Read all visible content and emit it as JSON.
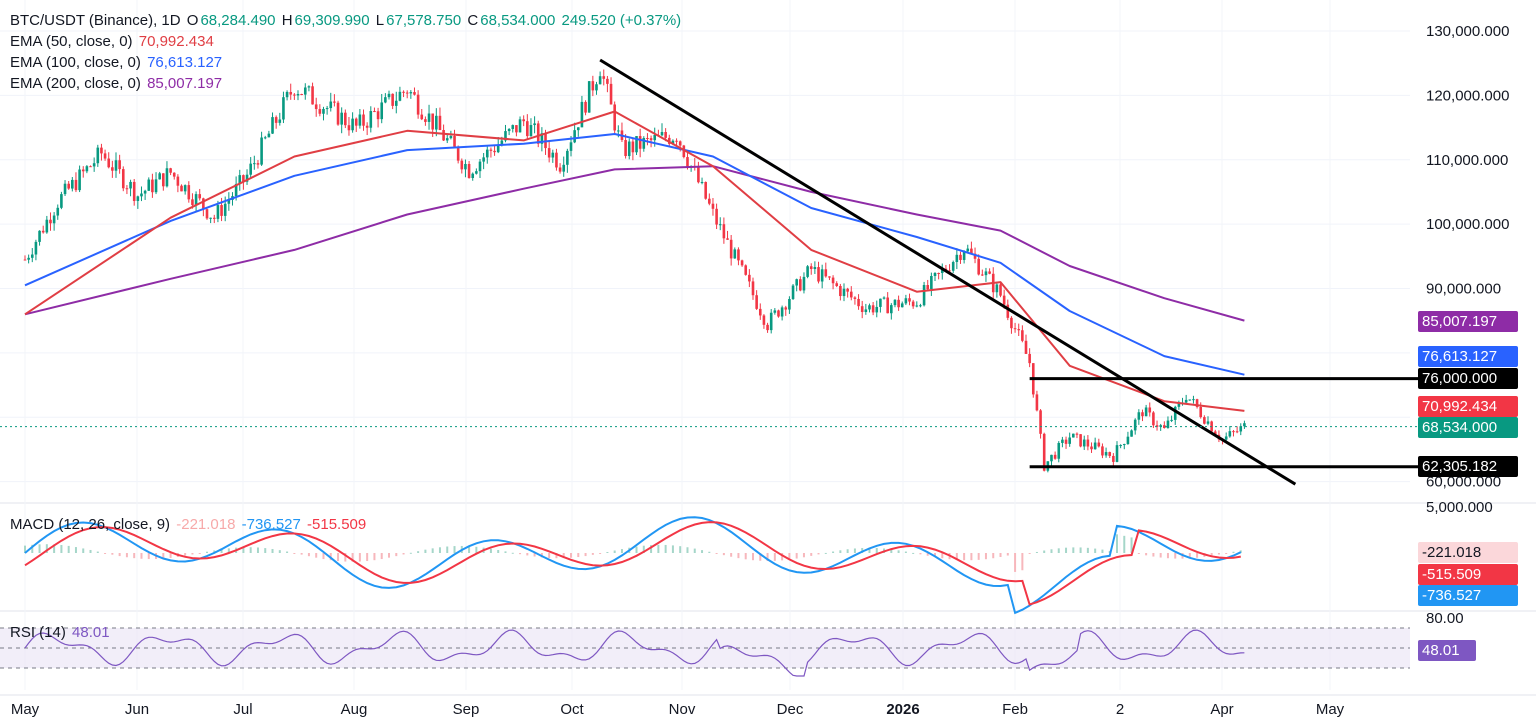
{
  "colors": {
    "up": "#089981",
    "down": "#f23645",
    "ema50": "#e03e44",
    "ema100": "#2962ff",
    "ema200": "#8e2ca6",
    "macd": "#2196f3",
    "signal": "#f23645",
    "rsi": "#7e57c2",
    "trend": "#000000"
  },
  "legend": {
    "symbol": "BTC/USDT (Binance), 1D",
    "o_label": "O",
    "o": "68,284.490",
    "h_label": "H",
    "h": "69,309.990",
    "l_label": "L",
    "l": "67,578.750",
    "c_label": "C",
    "c": "68,534.000",
    "change": "249.520 (+0.37%)",
    "ema50_label": "EMA (50, close, 0)",
    "ema50": "70,992.434",
    "ema100_label": "EMA (100, close, 0)",
    "ema100": "76,613.127",
    "ema200_label": "EMA (200, close, 0)",
    "ema200": "85,007.197",
    "macd_label": "MACD (12, 26, close, 9)",
    "macd_hist": "-221.018",
    "macd_line": "-736.527",
    "macd_signal": "-515.509",
    "rsi_label": "RSI (14)",
    "rsi": "48.01"
  },
  "tags": {
    "ema200": "85,007.197",
    "ema100": "76,613.127",
    "res": "76,000.000",
    "ema50": "70,992.434",
    "close": "68,534.000",
    "sup": "62,305.182",
    "macd_hist": "-221.018",
    "macd_signal": "-515.509",
    "macd_line": "-736.527",
    "rsi": "48.01"
  },
  "chart_data": {
    "type": "candlestick",
    "symbol": "BTC/USDT (Binance)",
    "interval": "1D",
    "x_labels": [
      "May",
      "Jun",
      "Jul",
      "Aug",
      "Sep",
      "Oct",
      "Nov",
      "Dec",
      "2026",
      "Feb",
      "2",
      "Apr",
      "May"
    ],
    "price_axis_labels": [
      "130,000.000",
      "120,000.000",
      "110,000.000",
      "100,000.000",
      "90,000.000",
      "60,000.000"
    ],
    "macd_axis_labels": [
      "5,000.000"
    ],
    "rsi_axis_labels": [
      "80.00"
    ],
    "close_path": [
      {
        "t": "May 1",
        "v": 94500
      },
      {
        "t": "May 10",
        "v": 103500
      },
      {
        "t": "May 22",
        "v": 111000
      },
      {
        "t": "Jun 1",
        "v": 104500
      },
      {
        "t": "Jun 10",
        "v": 108000
      },
      {
        "t": "Jun 22",
        "v": 101000
      },
      {
        "t": "Jul 1",
        "v": 107500
      },
      {
        "t": "Jul 14",
        "v": 121500
      },
      {
        "t": "Jul 31",
        "v": 115000
      },
      {
        "t": "Aug 14",
        "v": 121000
      },
      {
        "t": "Aug 31",
        "v": 108500
      },
      {
        "t": "Sep 15",
        "v": 116000
      },
      {
        "t": "Sep 25",
        "v": 109500
      },
      {
        "t": "Oct 6",
        "v": 124500
      },
      {
        "t": "Oct 12",
        "v": 111500
      },
      {
        "t": "Oct 27",
        "v": 114000
      },
      {
        "t": "Nov 6",
        "v": 101500
      },
      {
        "t": "Nov 21",
        "v": 84500
      },
      {
        "t": "Dec 3",
        "v": 93000
      },
      {
        "t": "Dec 18",
        "v": 87000
      },
      {
        "t": "Jan 1",
        "v": 88000
      },
      {
        "t": "Jan 14",
        "v": 96500
      },
      {
        "t": "Jan 24",
        "v": 89000
      },
      {
        "t": "Feb 1",
        "v": 78500
      },
      {
        "t": "Feb 5",
        "v": 62500
      },
      {
        "t": "Feb 12",
        "v": 67000
      },
      {
        "t": "Feb 24",
        "v": 64000
      },
      {
        "t": "Mar 4",
        "v": 71000
      },
      {
        "t": "Mar 10",
        "v": 68000
      },
      {
        "t": "Mar 16",
        "v": 73500
      },
      {
        "t": "Mar 26",
        "v": 66500
      },
      {
        "t": "Apr 1",
        "v": 68534
      }
    ],
    "ema50_path": [
      {
        "t": "May 1",
        "v": 86000
      },
      {
        "t": "Jun 10",
        "v": 101000
      },
      {
        "t": "Jul 14",
        "v": 110500
      },
      {
        "t": "Aug 14",
        "v": 114500
      },
      {
        "t": "Sep 15",
        "v": 113000
      },
      {
        "t": "Oct 10",
        "v": 117500
      },
      {
        "t": "Nov 6",
        "v": 109000
      },
      {
        "t": "Dec 3",
        "v": 96000
      },
      {
        "t": "Jan 1",
        "v": 89500
      },
      {
        "t": "Jan 24",
        "v": 91000
      },
      {
        "t": "Feb 12",
        "v": 78000
      },
      {
        "t": "Mar 10",
        "v": 72500
      },
      {
        "t": "Apr 1",
        "v": 70992
      }
    ],
    "ema100_path": [
      {
        "t": "May 1",
        "v": 90500
      },
      {
        "t": "Jun 10",
        "v": 100500
      },
      {
        "t": "Jul 14",
        "v": 107500
      },
      {
        "t": "Aug 14",
        "v": 111500
      },
      {
        "t": "Sep 15",
        "v": 112500
      },
      {
        "t": "Oct 10",
        "v": 114000
      },
      {
        "t": "Nov 6",
        "v": 110500
      },
      {
        "t": "Dec 3",
        "v": 102500
      },
      {
        "t": "Jan 1",
        "v": 98000
      },
      {
        "t": "Jan 24",
        "v": 94000
      },
      {
        "t": "Feb 12",
        "v": 86500
      },
      {
        "t": "Mar 10",
        "v": 79500
      },
      {
        "t": "Apr 1",
        "v": 76613
      }
    ],
    "ema200_path": [
      {
        "t": "May 1",
        "v": 86000
      },
      {
        "t": "Jun 10",
        "v": 91500
      },
      {
        "t": "Jul 14",
        "v": 96000
      },
      {
        "t": "Aug 14",
        "v": 101500
      },
      {
        "t": "Sep 15",
        "v": 105500
      },
      {
        "t": "Oct 10",
        "v": 108500
      },
      {
        "t": "Nov 6",
        "v": 109000
      },
      {
        "t": "Dec 3",
        "v": 105000
      },
      {
        "t": "Jan 1",
        "v": 101500
      },
      {
        "t": "Jan 24",
        "v": 99000
      },
      {
        "t": "Feb 12",
        "v": 93500
      },
      {
        "t": "Mar 10",
        "v": 88500
      },
      {
        "t": "Apr 1",
        "v": 85007
      }
    ],
    "trendline": {
      "from": {
        "t": "Oct 6",
        "v": 125500
      },
      "to": {
        "t": "Apr 15",
        "v": 59600
      }
    },
    "resistance": {
      "value": 76000,
      "from": "Feb 1",
      "to": "Apr 1"
    },
    "support": {
      "value": 62305.182,
      "from": "Feb 1",
      "to": "Apr 1"
    },
    "macd": {
      "last": -736.527,
      "signal": -515.509,
      "histogram": -221.018
    },
    "rsi": {
      "last": 48.01,
      "upper": 70,
      "middle": 50,
      "lower": 30
    },
    "grid": true
  }
}
